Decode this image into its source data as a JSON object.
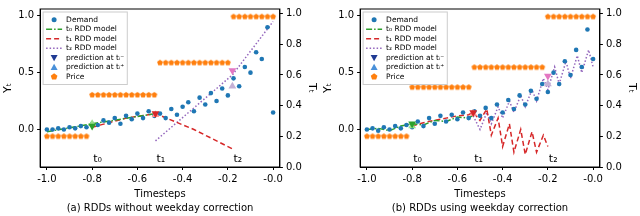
{
  "chart_data": [
    {
      "type": "scatter",
      "title": "(a) RDDs without weekday correction",
      "x_label": "Timesteps",
      "y_label": "Yₜ",
      "y2_label": "Tₜ",
      "xlim": [
        -1.03,
        0.03
      ],
      "xticks": [
        {
          "value": -1.0,
          "label": "-1.0"
        },
        {
          "value": -0.8,
          "label": "-0.8"
        },
        {
          "value": -0.6,
          "label": "-0.6"
        },
        {
          "value": -0.4,
          "label": "-0.4"
        },
        {
          "value": -0.2,
          "label": "-0.2"
        },
        {
          "value": 0,
          "label": "-0.0"
        }
      ],
      "ylim": [
        -0.33,
        1.06
      ],
      "yticks": [
        {
          "value": 0,
          "label": "0.0"
        },
        {
          "value": 0.5,
          "label": "0.5"
        },
        {
          "value": 1,
          "label": "1.0"
        }
      ],
      "y2lim": [
        0,
        1.03
      ],
      "y2ticks": [
        {
          "value": 0,
          "label": "0.0"
        },
        {
          "value": 0.2,
          "label": "0.2"
        },
        {
          "value": 0.4,
          "label": "0.4"
        },
        {
          "value": 0.6,
          "label": "0.6"
        },
        {
          "value": 0.8,
          "label": "0.8"
        },
        {
          "value": 1,
          "label": "1.0"
        }
      ],
      "grid": false,
      "legend": "upper left",
      "annotations": [
        {
          "text": "t₀",
          "x": -0.8,
          "y": -0.26
        },
        {
          "text": "t₁",
          "x": -0.52,
          "y": -0.26
        },
        {
          "text": "t₂",
          "x": -0.18,
          "y": -0.26
        }
      ],
      "series": [
        {
          "name": "Demand",
          "type": "scatter",
          "marker": "circle",
          "color": "#1f77b4",
          "x": [
            -1.0,
            -0.975,
            -0.95,
            -0.925,
            -0.9,
            -0.875,
            -0.85,
            -0.825,
            -0.8,
            -0.775,
            -0.75,
            -0.725,
            -0.7,
            -0.675,
            -0.65,
            -0.625,
            -0.6,
            -0.575,
            -0.55,
            -0.525,
            -0.5,
            -0.475,
            -0.45,
            -0.425,
            -0.4,
            -0.375,
            -0.35,
            -0.325,
            -0.3,
            -0.275,
            -0.25,
            -0.225,
            -0.2,
            -0.175,
            -0.15,
            -0.125,
            -0.1,
            -0.075,
            -0.05,
            -0.025,
            0.0
          ],
          "values": [
            0.0,
            0.0,
            0.01,
            0.0,
            0.02,
            0.01,
            0.03,
            0.02,
            0.05,
            0.04,
            0.08,
            0.06,
            0.1,
            0.05,
            0.12,
            0.09,
            0.14,
            0.1,
            0.16,
            0.12,
            0.14,
            0.1,
            0.18,
            0.13,
            0.2,
            0.24,
            0.16,
            0.28,
            0.22,
            0.32,
            0.25,
            0.36,
            0.3,
            0.45,
            0.38,
            0.55,
            0.5,
            0.68,
            0.62,
            0.9,
            0.15
          ]
        },
        {
          "name": "t₀ RDD model",
          "type": "line",
          "line_style": "dashdot",
          "color": "#2ca02c",
          "x": [
            -1.0,
            -0.8,
            -0.52
          ],
          "values": [
            -0.02,
            0.05,
            0.14
          ]
        },
        {
          "name": "t₁ RDD model",
          "type": "line",
          "line_style": "dashed",
          "color": "#d62728",
          "x": [
            -0.8,
            -0.65,
            -0.52,
            -0.35,
            -0.18
          ],
          "values": [
            0.02,
            0.1,
            0.14,
            0.0,
            -0.17
          ]
        },
        {
          "name": "t₂ RDD model",
          "type": "line",
          "line_style": "dotted",
          "color": "#9467bd",
          "x": [
            -0.52,
            -0.18,
            0.0
          ],
          "values": [
            -0.1,
            0.48,
            0.95
          ]
        },
        {
          "name": "prediction at tᵢ⁻",
          "type": "scatter",
          "marker": "triangle_down",
          "color": "#1f3a93",
          "colors": [
            "#2ca02c",
            "#d62728",
            "#e377c2"
          ],
          "x": [
            -0.8,
            -0.52,
            -0.18
          ],
          "values": [
            0.03,
            0.14,
            0.52
          ]
        },
        {
          "name": "prediction at tᵢ⁺",
          "type": "scatter",
          "marker": "triangle_up",
          "color": "#4a90d9",
          "colors": [
            "#98df8a",
            "#ff9896",
            "#c5b0d5"
          ],
          "x": [
            -0.8,
            -0.52,
            -0.18
          ],
          "values": [
            0.05,
            0.13,
            0.38
          ]
        },
        {
          "name": "Price",
          "type": "scatter",
          "marker": "pentagon",
          "color": "#ff7f0e",
          "axis": "y2",
          "x": [
            -1.0,
            -0.975,
            -0.95,
            -0.925,
            -0.9,
            -0.875,
            -0.85,
            -0.825,
            -0.8,
            -0.775,
            -0.75,
            -0.725,
            -0.7,
            -0.675,
            -0.65,
            -0.625,
            -0.6,
            -0.575,
            -0.55,
            -0.525,
            -0.5,
            -0.475,
            -0.45,
            -0.425,
            -0.4,
            -0.375,
            -0.35,
            -0.325,
            -0.3,
            -0.275,
            -0.25,
            -0.225,
            -0.2,
            -0.175,
            -0.15,
            -0.125,
            -0.1,
            -0.075,
            -0.05,
            -0.025,
            0.0
          ],
          "values": [
            0.2,
            0.2,
            0.2,
            0.2,
            0.2,
            0.2,
            0.2,
            0.2,
            0.47,
            0.47,
            0.47,
            0.47,
            0.47,
            0.47,
            0.47,
            0.47,
            0.47,
            0.47,
            0.47,
            0.47,
            0.68,
            0.68,
            0.68,
            0.68,
            0.68,
            0.68,
            0.68,
            0.68,
            0.68,
            0.68,
            0.68,
            0.68,
            0.68,
            0.98,
            0.98,
            0.98,
            0.98,
            0.98,
            0.98,
            0.98,
            0.98
          ]
        }
      ]
    },
    {
      "type": "scatter",
      "title": "(b) RDDs using weekday correction",
      "x_label": "Timesteps",
      "y_label": "Yₜ",
      "y2_label": "Tₜ",
      "xlim": [
        -1.03,
        0.03
      ],
      "xticks": [
        {
          "value": -1.0,
          "label": "-1.0"
        },
        {
          "value": -0.8,
          "label": "-0.8"
        },
        {
          "value": -0.6,
          "label": "-0.6"
        },
        {
          "value": -0.4,
          "label": "-0.4"
        },
        {
          "value": -0.2,
          "label": "-0.2"
        },
        {
          "value": 0,
          "label": "-0.0"
        }
      ],
      "ylim": [
        -0.33,
        1.06
      ],
      "yticks": [
        {
          "value": 0,
          "label": "0.0"
        },
        {
          "value": 0.5,
          "label": "0.5"
        },
        {
          "value": 1,
          "label": "1.0"
        }
      ],
      "y2lim": [
        0,
        1.03
      ],
      "y2ticks": [
        {
          "value": 0,
          "label": "0.0"
        },
        {
          "value": 0.2,
          "label": "0.2"
        },
        {
          "value": 0.4,
          "label": "0.4"
        },
        {
          "value": 0.6,
          "label": "0.6"
        },
        {
          "value": 0.8,
          "label": "0.8"
        },
        {
          "value": 1,
          "label": "1.0"
        }
      ],
      "grid": false,
      "legend": "upper left",
      "annotations": [
        {
          "text": "t₀",
          "x": -0.8,
          "y": -0.26
        },
        {
          "text": "t₁",
          "x": -0.53,
          "y": -0.26
        },
        {
          "text": "t₂",
          "x": -0.2,
          "y": -0.26
        }
      ],
      "series": [
        {
          "name": "Demand",
          "type": "scatter",
          "marker": "circle",
          "color": "#1f77b4",
          "x": [
            -1.0,
            -0.975,
            -0.95,
            -0.925,
            -0.9,
            -0.875,
            -0.85,
            -0.825,
            -0.8,
            -0.775,
            -0.75,
            -0.725,
            -0.7,
            -0.675,
            -0.65,
            -0.625,
            -0.6,
            -0.575,
            -0.55,
            -0.525,
            -0.5,
            -0.475,
            -0.45,
            -0.425,
            -0.4,
            -0.375,
            -0.35,
            -0.325,
            -0.3,
            -0.275,
            -0.25,
            -0.225,
            -0.2,
            -0.175,
            -0.15,
            -0.125,
            -0.1,
            -0.075,
            -0.05,
            -0.025,
            0.0
          ],
          "values": [
            0.0,
            0.01,
            -0.01,
            0.02,
            0.0,
            0.03,
            0.01,
            0.04,
            0.02,
            0.07,
            0.03,
            0.1,
            0.05,
            0.12,
            0.07,
            0.13,
            0.09,
            0.15,
            0.1,
            0.16,
            0.12,
            0.19,
            0.1,
            0.22,
            0.15,
            0.26,
            0.18,
            0.3,
            0.22,
            0.34,
            0.27,
            0.4,
            0.33,
            0.5,
            0.4,
            0.6,
            0.48,
            0.7,
            0.55,
            0.88,
            0.62
          ]
        },
        {
          "name": "t₀ RDD model",
          "type": "line",
          "line_style": "dashdot",
          "color": "#2ca02c",
          "x": [
            -1.0,
            -0.95,
            -0.9,
            -0.85,
            -0.8,
            -0.75,
            -0.7,
            -0.65,
            -0.6,
            -0.55,
            -0.52
          ],
          "values": [
            0.0,
            0.01,
            -0.01,
            0.03,
            0.05,
            0.04,
            0.08,
            0.07,
            0.11,
            0.1,
            0.14
          ]
        },
        {
          "name": "t₁ RDD model",
          "type": "line",
          "line_style": "dashed",
          "color": "#d62728",
          "x": [
            -0.8,
            -0.75,
            -0.7,
            -0.65,
            -0.6,
            -0.55,
            -0.53,
            -0.5,
            -0.47,
            -0.45,
            -0.42,
            -0.4,
            -0.37,
            -0.35,
            -0.32,
            -0.3,
            -0.27,
            -0.25,
            -0.22,
            -0.2
          ],
          "values": [
            0.03,
            0.06,
            0.08,
            0.1,
            0.12,
            0.13,
            0.15,
            0.08,
            0.18,
            -0.05,
            0.1,
            -0.15,
            0.05,
            -0.2,
            0.0,
            -0.22,
            -0.02,
            -0.2,
            -0.05,
            -0.15
          ]
        },
        {
          "name": "t₂ RDD model",
          "type": "line",
          "line_style": "dotted",
          "color": "#9467bd",
          "x": [
            -0.53,
            -0.5,
            -0.47,
            -0.45,
            -0.42,
            -0.4,
            -0.37,
            -0.35,
            -0.32,
            -0.3,
            -0.27,
            -0.25,
            -0.22,
            -0.2,
            -0.17,
            -0.15,
            -0.12,
            -0.1,
            -0.07,
            -0.05,
            -0.02,
            0.0
          ],
          "values": [
            0.12,
            0.0,
            0.15,
            0.05,
            0.2,
            0.1,
            0.25,
            0.15,
            0.3,
            0.2,
            0.35,
            0.25,
            0.45,
            0.35,
            0.55,
            0.4,
            0.6,
            0.45,
            0.65,
            0.5,
            0.7,
            0.55
          ]
        },
        {
          "name": "prediction at tᵢ⁻",
          "type": "scatter",
          "marker": "triangle_down",
          "color": "#1f3a93",
          "colors": [
            "#2ca02c",
            "#d62728",
            "#e377c2"
          ],
          "x": [
            -0.8,
            -0.53,
            -0.2
          ],
          "values": [
            0.05,
            0.15,
            0.47
          ]
        },
        {
          "name": "prediction at tᵢ⁺",
          "type": "scatter",
          "marker": "triangle_up",
          "color": "#4a90d9",
          "colors": [
            "#98df8a",
            "#ff9896",
            "#c5b0d5"
          ],
          "x": [
            -0.8,
            -0.53,
            -0.2
          ],
          "values": [
            0.03,
            0.14,
            0.4
          ]
        },
        {
          "name": "Price",
          "type": "scatter",
          "marker": "pentagon",
          "color": "#ff7f0e",
          "axis": "y2",
          "x": [
            -1.0,
            -0.975,
            -0.95,
            -0.925,
            -0.9,
            -0.875,
            -0.85,
            -0.825,
            -0.8,
            -0.775,
            -0.75,
            -0.725,
            -0.7,
            -0.675,
            -0.65,
            -0.625,
            -0.6,
            -0.575,
            -0.55,
            -0.525,
            -0.5,
            -0.475,
            -0.45,
            -0.425,
            -0.4,
            -0.375,
            -0.35,
            -0.325,
            -0.3,
            -0.275,
            -0.25,
            -0.225,
            -0.2,
            -0.175,
            -0.15,
            -0.125,
            -0.1,
            -0.075,
            -0.05,
            -0.025,
            0.0
          ],
          "values": [
            0.2,
            0.2,
            0.2,
            0.2,
            0.2,
            0.2,
            0.2,
            0.2,
            0.52,
            0.52,
            0.52,
            0.52,
            0.52,
            0.52,
            0.52,
            0.52,
            0.52,
            0.52,
            0.52,
            0.65,
            0.65,
            0.65,
            0.65,
            0.65,
            0.65,
            0.65,
            0.65,
            0.65,
            0.65,
            0.65,
            0.65,
            0.65,
            0.98,
            0.98,
            0.98,
            0.98,
            0.98,
            0.98,
            0.98,
            0.98,
            0.98
          ]
        }
      ]
    }
  ]
}
